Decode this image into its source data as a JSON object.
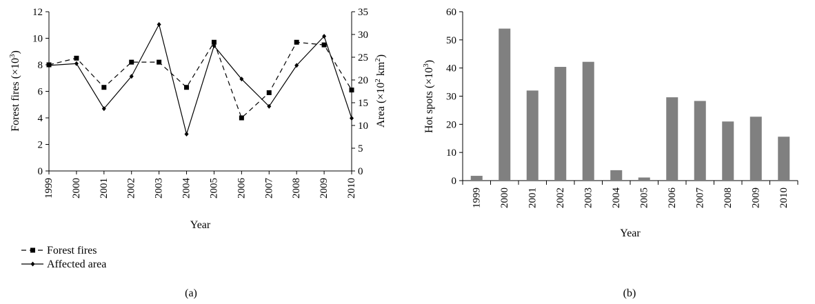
{
  "chart_data": [
    {
      "type": "line",
      "panel_label": "(a)",
      "x": [
        "1999",
        "2000",
        "2001",
        "2002",
        "2003",
        "2004",
        "2005",
        "2006",
        "2007",
        "2008",
        "2009",
        "2010"
      ],
      "xlabel": "Year",
      "ylabel_left": {
        "main": "Forest fires (×10",
        "sup": "3",
        "tail": ")"
      },
      "ylabel_right": {
        "main": "Area (×10",
        "sup": "2",
        "mid": " km",
        "sup2": "2",
        "tail": ")"
      },
      "ylim_left": [
        0,
        12
      ],
      "yticks_left": [
        "0",
        "2",
        "4",
        "6",
        "8",
        "10",
        "12"
      ],
      "ylim_right": [
        0,
        35
      ],
      "yticks_right": [
        "0",
        "5",
        "10",
        "15",
        "20",
        "25",
        "30",
        "35"
      ],
      "grid": false,
      "legend_position": "bottom-left",
      "series": [
        {
          "name": "Forest fires",
          "axis": "left",
          "style": "dashed",
          "marker": "square",
          "color": "#000000",
          "values": [
            8.0,
            8.5,
            6.3,
            8.2,
            8.2,
            6.3,
            9.7,
            4.0,
            5.9,
            9.7,
            9.5,
            6.1
          ]
        },
        {
          "name": "Affected area",
          "axis": "right",
          "style": "solid",
          "marker": "diamond",
          "color": "#000000",
          "values": [
            23.2,
            23.6,
            13.7,
            20.8,
            32.2,
            8.1,
            27.5,
            20.2,
            14.2,
            23.2,
            29.6,
            11.6
          ]
        }
      ]
    },
    {
      "type": "bar",
      "panel_label": "(b)",
      "categories": [
        "1999",
        "2000",
        "2001",
        "2002",
        "2003",
        "2004",
        "2005",
        "2006",
        "2007",
        "2008",
        "2009",
        "2010"
      ],
      "xlabel": "Year",
      "ylabel": {
        "main": "Hot spots (×10",
        "sup": "3",
        "tail": ")"
      },
      "ylim": [
        0,
        60
      ],
      "yticks": [
        "0",
        "10",
        "20",
        "30",
        "40",
        "50",
        "60"
      ],
      "grid": false,
      "bar_color": "#808080",
      "values": [
        1.7,
        54.0,
        32.0,
        40.4,
        42.2,
        3.7,
        1.1,
        29.6,
        28.3,
        21.0,
        22.7,
        15.6
      ]
    }
  ]
}
